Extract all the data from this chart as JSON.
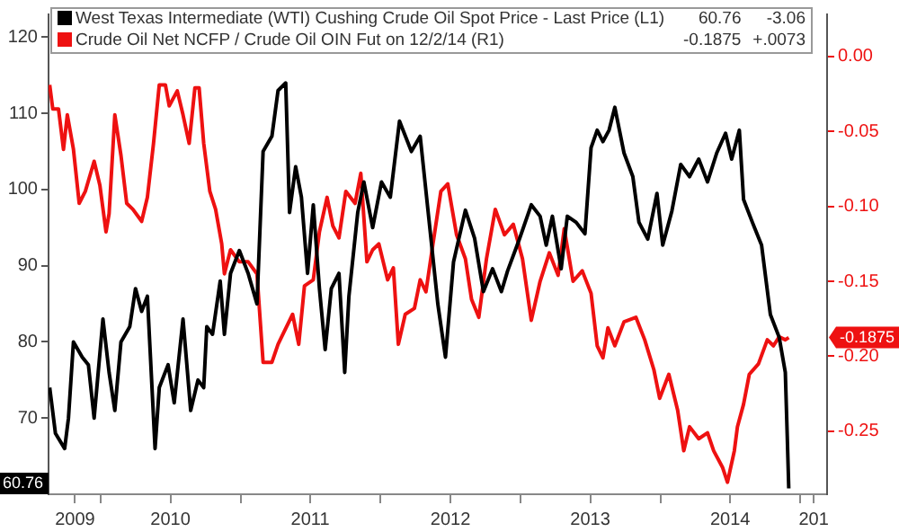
{
  "chart_data": {
    "type": "line",
    "series": [
      {
        "name": "West Texas Intermediate (WTI) Cushing Crude Oil Spot Price - Last Price (L1)",
        "color": "#000000",
        "axis": "y",
        "x": [
          "2009-08-21",
          "2009-09-05",
          "2009-09-29",
          "2009-10-09",
          "2009-10-22",
          "2009-11-14",
          "2009-11-30",
          "2009-12-15",
          "2010-01-07",
          "2010-01-23",
          "2010-02-07",
          "2010-02-23",
          "2010-03-18",
          "2010-04-02",
          "2010-04-18",
          "2010-05-03",
          "2010-05-11",
          "2010-05-23",
          "2010-06-03",
          "2010-06-26",
          "2010-07-12",
          "2010-08-04",
          "2010-08-24",
          "2010-09-12",
          "2010-09-27",
          "2010-10-05",
          "2010-10-20",
          "2010-11-09",
          "2010-11-20",
          "2010-12-06",
          "2010-12-29",
          "2011-01-21",
          "2011-02-13",
          "2011-03-01",
          "2011-03-24",
          "2011-04-09",
          "2011-04-29",
          "2011-05-09",
          "2011-05-25",
          "2011-06-09",
          "2011-06-25",
          "2011-07-10",
          "2011-07-26",
          "2011-08-10",
          "2011-08-26",
          "2011-09-15",
          "2011-09-30",
          "2011-10-11",
          "2011-11-03",
          "2011-11-19",
          "2011-12-12",
          "2012-01-04",
          "2012-01-27",
          "2012-02-20",
          "2012-03-22",
          "2012-04-14",
          "2012-05-07",
          "2012-05-30",
          "2012-06-19",
          "2012-07-10",
          "2012-08-10",
          "2012-09-03",
          "2012-09-26",
          "2012-10-20",
          "2012-11-12",
          "2012-11-28",
          "2012-12-29",
          "2013-01-29",
          "2013-02-21",
          "2013-03-09",
          "2013-03-25",
          "2013-04-17",
          "2013-05-03",
          "2013-05-26",
          "2013-06-18",
          "2013-07-04",
          "2013-07-20",
          "2013-08-04",
          "2013-08-20",
          "2013-09-04",
          "2013-09-28",
          "2013-10-21",
          "2013-11-06",
          "2013-11-29",
          "2013-12-23",
          "2014-01-07",
          "2014-01-31",
          "2014-02-23",
          "2014-03-18",
          "2014-04-11",
          "2014-05-04",
          "2014-05-28",
          "2014-06-20",
          "2014-07-06",
          "2014-07-26",
          "2014-08-06",
          "2014-08-29",
          "2014-09-22",
          "2014-10-15",
          "2014-11-07",
          "2014-11-23",
          "2014-11-28",
          "2014-12-02"
        ],
        "values": [
          74,
          68,
          66,
          70,
          80,
          78,
          77,
          70,
          83,
          76,
          71,
          80,
          82,
          87,
          84,
          86,
          78,
          66,
          74,
          77,
          72,
          83,
          71,
          75,
          74,
          82,
          81,
          88,
          81,
          89,
          92,
          89,
          85,
          105,
          107,
          113,
          114,
          97,
          103,
          99,
          89,
          98,
          87,
          79,
          87,
          89,
          76,
          86,
          97,
          101,
          95,
          101,
          99,
          109,
          105,
          107,
          96,
          85,
          78,
          90.5,
          97.3,
          93.6,
          86.6,
          89.6,
          86.6,
          89.3,
          93.5,
          98,
          96.5,
          92.7,
          96.5,
          89.6,
          96.5,
          95.7,
          94.2,
          105.5,
          107.8,
          106.3,
          107.8,
          110.8,
          104.8,
          101.7,
          95.7,
          93.5,
          99.5,
          92.7,
          97.2,
          103.3,
          101.7,
          104,
          101,
          104.8,
          107.4,
          104,
          107.8,
          98.7,
          95.7,
          92.7,
          83.6,
          80.6,
          76,
          67.7,
          60.76
        ]
      },
      {
        "name": "Crude Oil Net NCFP / Crude Oil OIN Fut on 12/2/14 (R1)",
        "color": "#ee1111",
        "axis": "y2",
        "x": [
          "2009-08-21",
          "2009-08-29",
          "2009-09-13",
          "2009-09-26",
          "2009-10-06",
          "2009-10-22",
          "2009-11-06",
          "2009-11-22",
          "2009-12-15",
          "2009-12-30",
          "2010-01-15",
          "2010-01-23",
          "2010-02-07",
          "2010-02-23",
          "2010-03-10",
          "2010-03-26",
          "2010-04-18",
          "2010-05-03",
          "2010-05-19",
          "2010-06-03",
          "2010-06-19",
          "2010-06-29",
          "2010-07-20",
          "2010-08-04",
          "2010-08-20",
          "2010-09-04",
          "2010-09-15",
          "2010-09-27",
          "2010-10-13",
          "2010-10-28",
          "2010-11-13",
          "2010-11-20",
          "2010-12-06",
          "2010-12-29",
          "2011-01-21",
          "2011-02-13",
          "2011-03-01",
          "2011-03-24",
          "2011-04-09",
          "2011-04-24",
          "2011-05-17",
          "2011-06-02",
          "2011-06-17",
          "2011-07-10",
          "2011-07-26",
          "2011-08-15",
          "2011-08-30",
          "2011-09-15",
          "2011-10-03",
          "2011-10-27",
          "2011-11-11",
          "2011-11-27",
          "2011-12-12",
          "2011-12-28",
          "2012-01-20",
          "2012-02-04",
          "2012-02-17",
          "2012-03-06",
          "2012-03-30",
          "2012-04-14",
          "2012-04-29",
          "2012-05-15",
          "2012-06-07",
          "2012-06-25",
          "2012-07-18",
          "2012-08-10",
          "2012-08-26",
          "2012-09-14",
          "2012-10-04",
          "2012-10-27",
          "2012-11-20",
          "2012-12-13",
          "2013-01-06",
          "2013-01-29",
          "2013-02-21",
          "2013-03-17",
          "2013-04-09",
          "2013-04-25",
          "2013-05-18",
          "2013-06-11",
          "2013-07-04",
          "2013-07-20",
          "2013-08-04",
          "2013-08-17",
          "2013-09-04",
          "2013-09-28",
          "2013-10-29",
          "2013-11-21",
          "2013-12-15",
          "2013-12-30",
          "2014-01-23",
          "2014-02-15",
          "2014-03-03",
          "2014-03-18",
          "2014-04-11",
          "2014-05-04",
          "2014-05-20",
          "2014-06-12",
          "2014-06-25",
          "2014-07-13",
          "2014-07-21",
          "2014-08-06",
          "2014-08-21",
          "2014-09-14",
          "2014-10-07",
          "2014-10-23",
          "2014-11-07",
          "2014-11-23",
          "2014-12-02"
        ],
        "values": [
          -0.019,
          -0.035,
          -0.035,
          -0.062,
          -0.039,
          -0.062,
          -0.098,
          -0.09,
          -0.07,
          -0.086,
          -0.117,
          -0.105,
          -0.039,
          -0.066,
          -0.098,
          -0.102,
          -0.11,
          -0.094,
          -0.058,
          -0.019,
          -0.019,
          -0.033,
          -0.023,
          -0.039,
          -0.058,
          -0.021,
          -0.021,
          -0.058,
          -0.09,
          -0.102,
          -0.125,
          -0.145,
          -0.129,
          -0.137,
          -0.137,
          -0.145,
          -0.204,
          -0.204,
          -0.192,
          -0.184,
          -0.172,
          -0.192,
          -0.153,
          -0.149,
          -0.117,
          -0.094,
          -0.113,
          -0.121,
          -0.09,
          -0.098,
          -0.078,
          -0.137,
          -0.129,
          -0.125,
          -0.149,
          -0.141,
          -0.192,
          -0.172,
          -0.168,
          -0.149,
          -0.157,
          -0.129,
          -0.09,
          -0.085,
          -0.119,
          -0.135,
          -0.162,
          -0.174,
          -0.135,
          -0.102,
          -0.119,
          -0.112,
          -0.135,
          -0.176,
          -0.15,
          -0.131,
          -0.146,
          -0.115,
          -0.15,
          -0.143,
          -0.158,
          -0.193,
          -0.201,
          -0.181,
          -0.193,
          -0.177,
          -0.174,
          -0.189,
          -0.209,
          -0.228,
          -0.212,
          -0.236,
          -0.263,
          -0.247,
          -0.255,
          -0.251,
          -0.263,
          -0.274,
          -0.284,
          -0.263,
          -0.247,
          -0.232,
          -0.212,
          -0.205,
          -0.189,
          -0.193,
          -0.187,
          -0.189,
          -0.1875
        ]
      }
    ],
    "xlim": [
      "2009-08-18",
      "2015-03-12"
    ],
    "xticks": [
      {
        "value": "2009-10-26",
        "label": "2009"
      },
      {
        "value": "2010-01-01",
        "label": null
      },
      {
        "value": "2010-07-02",
        "label": "2010"
      },
      {
        "value": "2011-01-01",
        "label": null
      },
      {
        "value": "2011-07-02",
        "label": "2011"
      },
      {
        "value": "2012-01-01",
        "label": null
      },
      {
        "value": "2012-07-02",
        "label": "2012"
      },
      {
        "value": "2013-01-01",
        "label": null
      },
      {
        "value": "2013-07-02",
        "label": "2013"
      },
      {
        "value": "2014-01-01",
        "label": null
      },
      {
        "value": "2014-07-02",
        "label": "2014"
      },
      {
        "value": "2015-01-01",
        "label": null
      },
      {
        "value": "2015-02-05",
        "label": "201"
      }
    ],
    "ylim": [
      60,
      123
    ],
    "yticks": [
      70,
      80,
      90,
      100,
      110,
      120
    ],
    "y2lim": [
      -0.292,
      0.028
    ],
    "y2ticks": [
      {
        "value": 0,
        "label": "0.00"
      },
      -0.05,
      {
        "value": -0.1,
        "label": "-0.10"
      },
      -0.15,
      {
        "value": -0.2,
        "label": "-0.20"
      },
      -0.25
    ],
    "legend": "top left",
    "annotations": [
      "60.76",
      "-3.06",
      "-0.1875",
      "+.0073",
      "60.76",
      "-0.1875"
    ]
  }
}
